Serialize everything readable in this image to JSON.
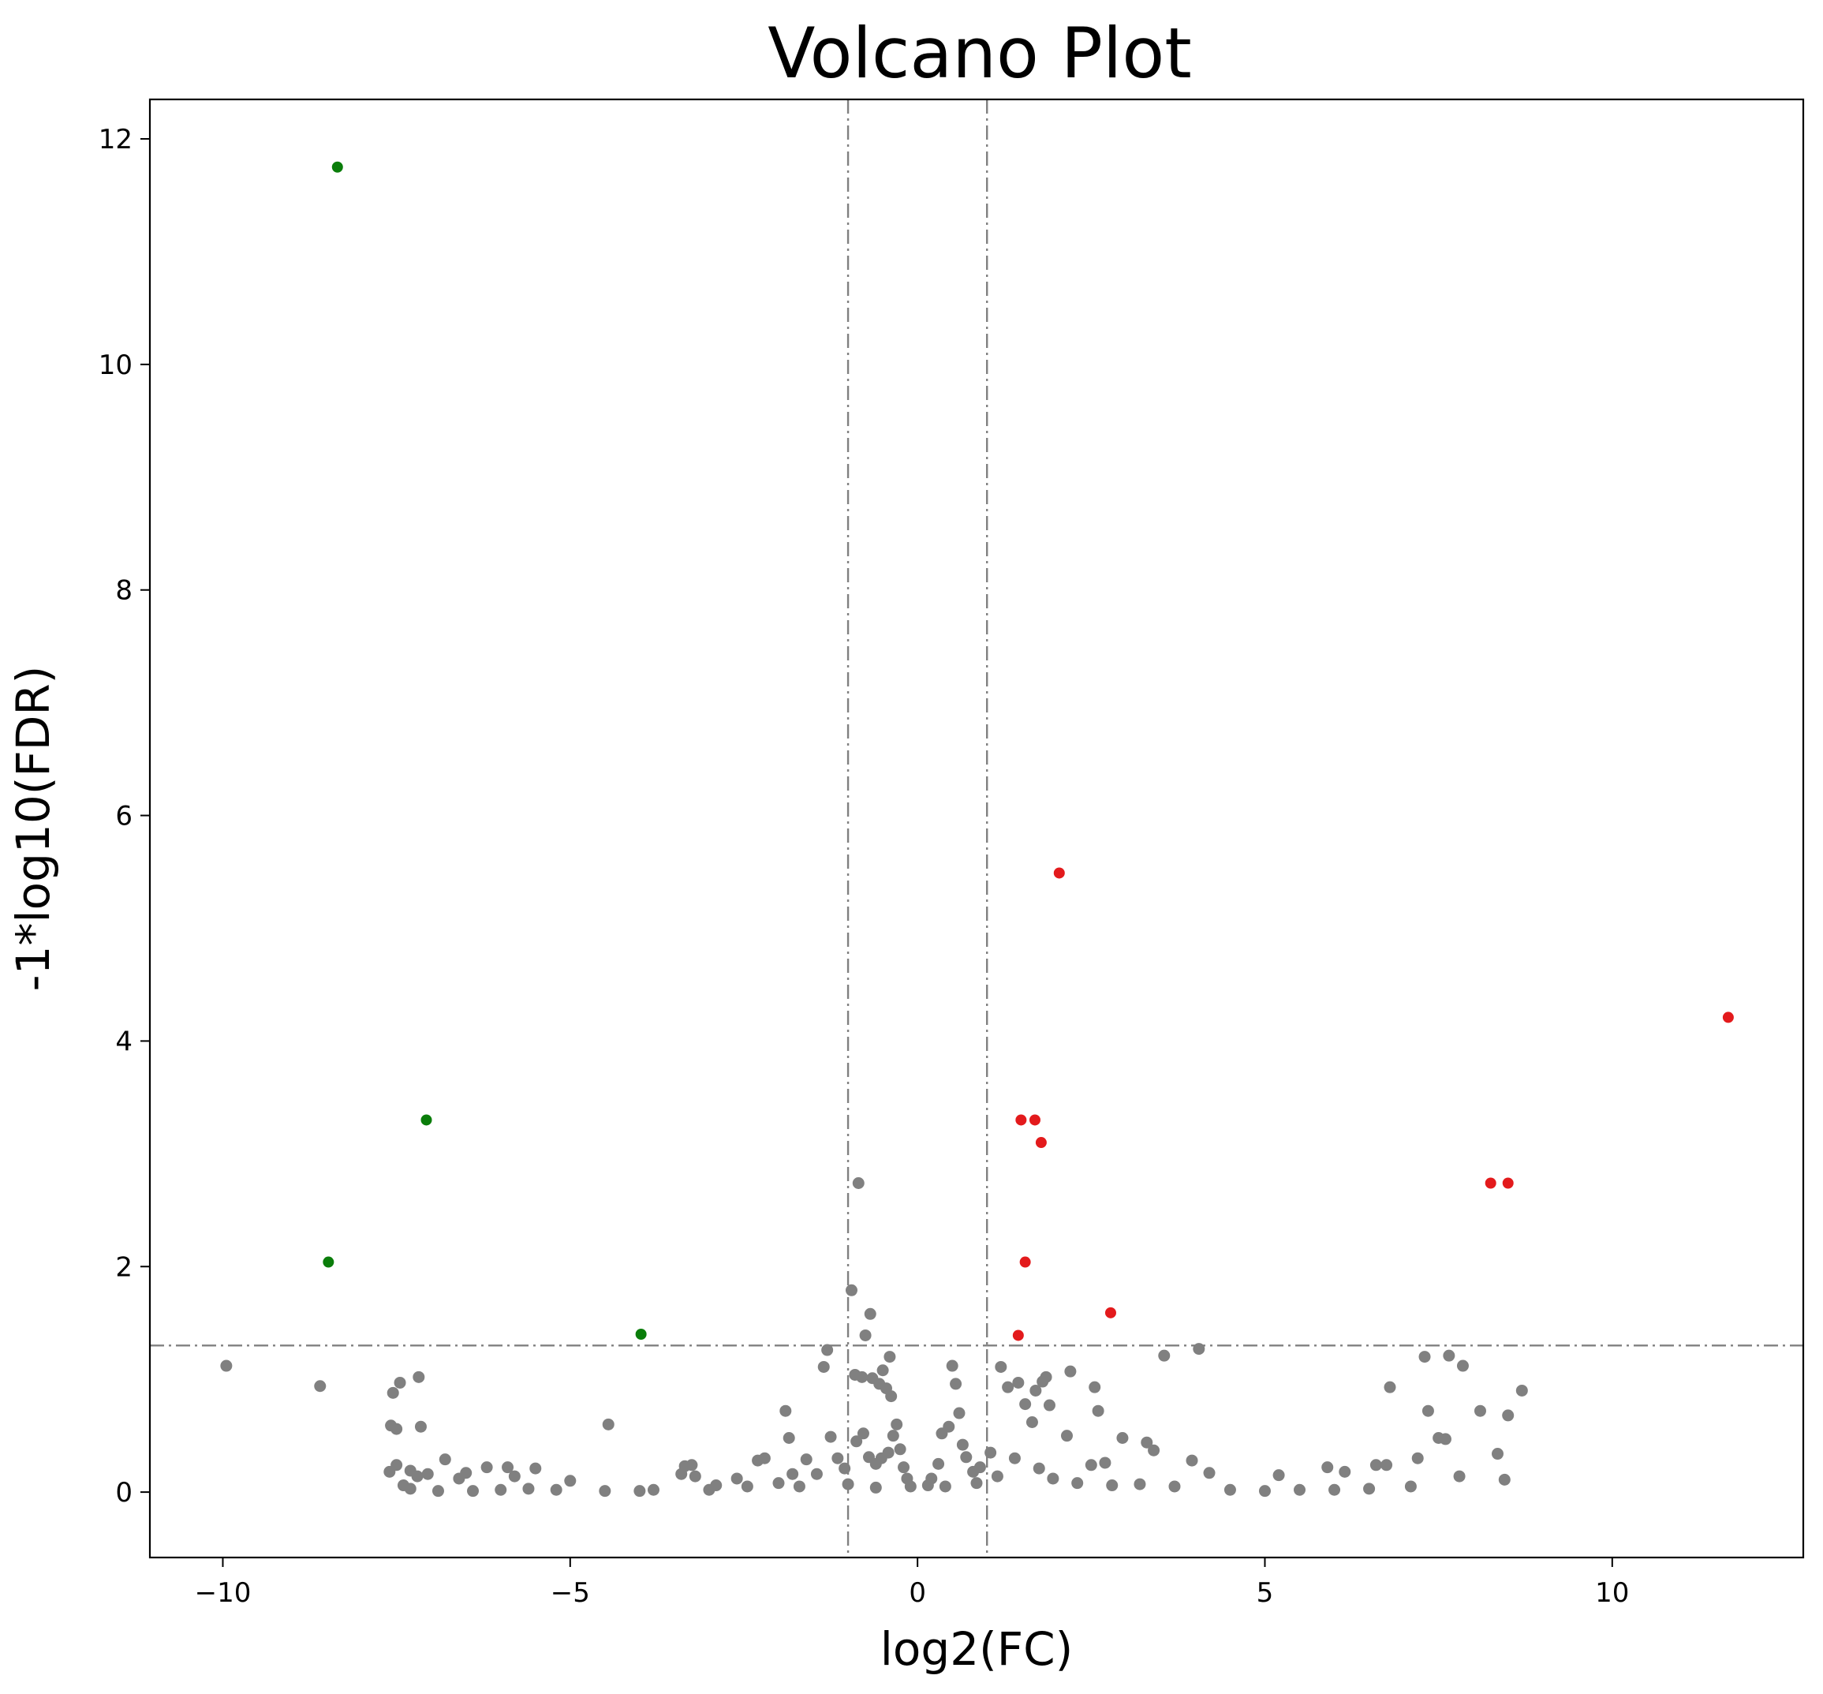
{
  "chart_data": {
    "type": "scatter",
    "title": "Volcano Plot",
    "xlabel": "log2(FC)",
    "ylabel": "-1*log10(FDR)",
    "xlim": [
      -11.05,
      12.75
    ],
    "ylim": [
      -0.58,
      12.35
    ],
    "x_ticks": [
      -10,
      -5,
      0,
      5,
      10
    ],
    "x_tick_labels": [
      "−10",
      "−5",
      "0",
      "5",
      "10"
    ],
    "y_ticks": [
      0,
      2,
      4,
      6,
      8,
      10,
      12
    ],
    "y_tick_labels": [
      "0",
      "2",
      "4",
      "6",
      "8",
      "10",
      "12"
    ],
    "grid": false,
    "legend": "none",
    "threshold_lines": {
      "x": [
        -1,
        1
      ],
      "y": [
        1.3
      ],
      "style": "dash-dot",
      "color": "#808080"
    },
    "colors": {
      "up": "#e31a1c",
      "down": "#0a7d0a",
      "ns": "#808080"
    },
    "series": [
      {
        "values": [
          [
            -8.35,
            11.75
          ],
          [
            -7.07,
            3.3
          ],
          [
            -8.48,
            2.04
          ],
          [
            -3.98,
            1.4
          ]
        ]
      },
      {
        "values": [
          [
            2.04,
            5.49
          ],
          [
            11.67,
            4.21
          ],
          [
            1.49,
            3.3
          ],
          [
            1.69,
            3.3
          ],
          [
            1.78,
            3.1
          ],
          [
            8.25,
            2.74
          ],
          [
            8.5,
            2.74
          ],
          [
            1.55,
            2.04
          ],
          [
            2.78,
            1.59
          ],
          [
            1.45,
            1.39
          ]
        ]
      },
      {
        "values": [
          [
            -9.95,
            1.12
          ],
          [
            -8.6,
            0.94
          ],
          [
            -7.45,
            0.97
          ],
          [
            -7.18,
            1.02
          ],
          [
            -7.55,
            0.88
          ],
          [
            -7.58,
            0.59
          ],
          [
            -7.5,
            0.56
          ],
          [
            -7.15,
            0.58
          ],
          [
            -4.45,
            0.6
          ],
          [
            -6.8,
            0.29
          ],
          [
            -7.5,
            0.24
          ],
          [
            -7.6,
            0.18
          ],
          [
            -7.3,
            0.19
          ],
          [
            -7.2,
            0.14
          ],
          [
            -7.4,
            0.06
          ],
          [
            -7.05,
            0.16
          ],
          [
            -6.5,
            0.17
          ],
          [
            -6.2,
            0.22
          ],
          [
            -5.9,
            0.22
          ],
          [
            -5.5,
            0.21
          ],
          [
            -5.8,
            0.14
          ],
          [
            -6.6,
            0.12
          ],
          [
            -5.0,
            0.1
          ],
          [
            -3.35,
            0.23
          ],
          [
            -3.25,
            0.24
          ],
          [
            -3.2,
            0.14
          ],
          [
            -3.4,
            0.16
          ],
          [
            -2.9,
            0.06
          ],
          [
            -2.6,
            0.12
          ],
          [
            -2.3,
            0.28
          ],
          [
            -2.2,
            0.3
          ],
          [
            -1.9,
            0.72
          ],
          [
            -1.85,
            0.48
          ],
          [
            -1.8,
            0.16
          ],
          [
            -1.6,
            0.29
          ],
          [
            -1.3,
            1.26
          ],
          [
            -1.35,
            1.11
          ],
          [
            -1.25,
            0.49
          ],
          [
            -0.95,
            1.79
          ],
          [
            -0.9,
            1.04
          ],
          [
            -0.8,
            1.02
          ],
          [
            -0.75,
            1.39
          ],
          [
            -0.68,
            1.58
          ],
          [
            -0.65,
            1.01
          ],
          [
            -0.55,
            0.96
          ],
          [
            -0.5,
            1.08
          ],
          [
            -0.45,
            0.92
          ],
          [
            -0.4,
            1.2
          ],
          [
            -0.38,
            0.85
          ],
          [
            -0.3,
            0.6
          ],
          [
            -0.85,
            2.74
          ],
          [
            -1.05,
            0.21
          ],
          [
            -0.7,
            0.31
          ],
          [
            -0.6,
            0.25
          ],
          [
            -0.25,
            0.38
          ],
          [
            -0.35,
            0.5
          ],
          [
            -0.15,
            0.12
          ],
          [
            -0.1,
            0.05
          ],
          [
            -0.2,
            0.22
          ],
          [
            -0.42,
            0.35
          ],
          [
            -0.52,
            0.3
          ],
          [
            -0.78,
            0.52
          ],
          [
            -0.88,
            0.45
          ],
          [
            -1.15,
            0.3
          ],
          [
            -1.45,
            0.16
          ],
          [
            -2.0,
            0.08
          ],
          [
            -2.45,
            0.05
          ],
          [
            -3.8,
            0.02
          ],
          [
            -4.0,
            0.01
          ],
          [
            -4.5,
            0.01
          ],
          [
            -5.2,
            0.02
          ],
          [
            -5.6,
            0.03
          ],
          [
            -6.0,
            0.02
          ],
          [
            -6.4,
            0.01
          ],
          [
            -6.9,
            0.01
          ],
          [
            -7.3,
            0.03
          ],
          [
            -3.0,
            0.02
          ],
          [
            -1.7,
            0.05
          ],
          [
            -1.0,
            0.07
          ],
          [
            -0.6,
            0.04
          ],
          [
            0.15,
            0.06
          ],
          [
            0.2,
            0.12
          ],
          [
            0.3,
            0.25
          ],
          [
            0.35,
            0.52
          ],
          [
            0.45,
            0.58
          ],
          [
            0.5,
            1.12
          ],
          [
            0.55,
            0.96
          ],
          [
            0.6,
            0.7
          ],
          [
            0.65,
            0.42
          ],
          [
            0.7,
            0.31
          ],
          [
            0.8,
            0.18
          ],
          [
            0.9,
            0.22
          ],
          [
            1.05,
            0.35
          ],
          [
            1.2,
            1.11
          ],
          [
            1.3,
            0.93
          ],
          [
            1.45,
            0.97
          ],
          [
            1.55,
            0.78
          ],
          [
            1.65,
            0.62
          ],
          [
            1.7,
            0.9
          ],
          [
            1.8,
            0.98
          ],
          [
            1.85,
            1.02
          ],
          [
            1.9,
            0.77
          ],
          [
            1.4,
            0.3
          ],
          [
            1.75,
            0.21
          ],
          [
            2.2,
            1.07
          ],
          [
            2.15,
            0.5
          ],
          [
            2.55,
            0.93
          ],
          [
            2.6,
            0.72
          ],
          [
            2.5,
            0.24
          ],
          [
            2.7,
            0.26
          ],
          [
            2.95,
            0.48
          ],
          [
            3.3,
            0.44
          ],
          [
            3.4,
            0.37
          ],
          [
            3.55,
            1.21
          ],
          [
            4.05,
            1.27
          ],
          [
            3.95,
            0.28
          ],
          [
            4.2,
            0.17
          ],
          [
            4.5,
            0.02
          ],
          [
            5.2,
            0.15
          ],
          [
            5.9,
            0.22
          ],
          [
            6.15,
            0.18
          ],
          [
            6.6,
            0.24
          ],
          [
            6.75,
            0.24
          ],
          [
            6.8,
            0.93
          ],
          [
            7.3,
            1.2
          ],
          [
            7.65,
            1.21
          ],
          [
            7.85,
            1.12
          ],
          [
            7.35,
            0.72
          ],
          [
            7.6,
            0.47
          ],
          [
            8.1,
            0.72
          ],
          [
            8.35,
            0.34
          ],
          [
            8.5,
            0.68
          ],
          [
            8.7,
            0.9
          ],
          [
            8.45,
            0.11
          ],
          [
            7.2,
            0.3
          ],
          [
            7.5,
            0.48
          ],
          [
            7.8,
            0.14
          ],
          [
            7.1,
            0.05
          ],
          [
            6.5,
            0.03
          ],
          [
            6.0,
            0.02
          ],
          [
            5.5,
            0.02
          ],
          [
            5.0,
            0.01
          ],
          [
            3.7,
            0.05
          ],
          [
            3.2,
            0.07
          ],
          [
            2.8,
            0.06
          ],
          [
            2.3,
            0.08
          ],
          [
            1.95,
            0.12
          ],
          [
            1.15,
            0.14
          ],
          [
            0.85,
            0.08
          ],
          [
            0.4,
            0.05
          ]
        ]
      }
    ]
  }
}
